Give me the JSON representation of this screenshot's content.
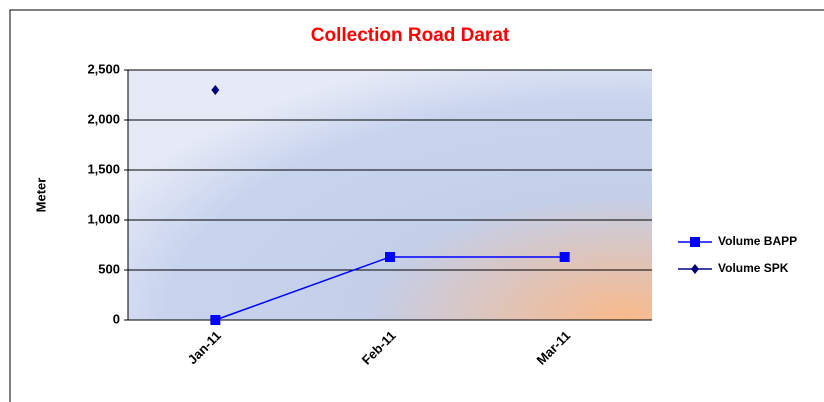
{
  "chart_data": {
    "type": "line",
    "title": "Collection Road Darat",
    "y_label": "Meter",
    "categories": [
      "Jan-11",
      "Feb-11",
      "Mar-11"
    ],
    "series": [
      {
        "name": "Volume BAPP",
        "color": "#0000ff",
        "marker": "square",
        "values": [
          0,
          630,
          630
        ]
      },
      {
        "name": "Volume SPK",
        "color": "#000080",
        "marker": "diamond",
        "values": [
          2300,
          null,
          null
        ]
      }
    ],
    "ylim": [
      0,
      2500
    ],
    "yticks": [
      0,
      500,
      {
        "value": 1000,
        "label": "1,000"
      },
      {
        "value": 1500,
        "label": "1,500"
      },
      {
        "value": 2000,
        "label": "2,000"
      },
      {
        "value": 2500,
        "label": "2,500"
      }
    ],
    "grid": true,
    "legend": "right"
  }
}
